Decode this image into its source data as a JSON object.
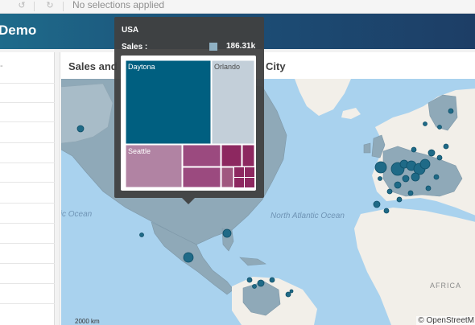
{
  "selection_bar": {
    "text": "No selections applied",
    "tools": [
      "selection-back-icon",
      "selection-forward-icon"
    ]
  },
  "header": {
    "title": "Demo"
  },
  "left_panel": {
    "marker": "-"
  },
  "map_panel": {
    "title_left": "Sales and",
    "title_right": "City"
  },
  "map": {
    "labels": {
      "ocean_west": "tic Ocean",
      "north_atlantic": "North Atlantic Ocean",
      "africa": "AFRICA"
    },
    "attribution": "© OpenStreetM",
    "scale_label": "2000 km",
    "land_color": "#f2efe9",
    "selected_region_color": "#8fa9b8",
    "water_color": "#a9d2ee",
    "bubble_color": "#1f6a87"
  },
  "tooltip": {
    "title": "USA",
    "measure_label": "Sales :",
    "measure_value": "186.31k",
    "swatch_color": "#8fb1c4",
    "treemap": [
      {
        "label": "Daytona",
        "color": "#005f80"
      },
      {
        "label": "Orlando",
        "color": "#c3cfd9"
      },
      {
        "label": "Seattle",
        "color": "#b183a3"
      },
      {
        "label": "",
        "color": "#9b4a7f"
      },
      {
        "label": "",
        "color": "#8d2860"
      }
    ]
  }
}
